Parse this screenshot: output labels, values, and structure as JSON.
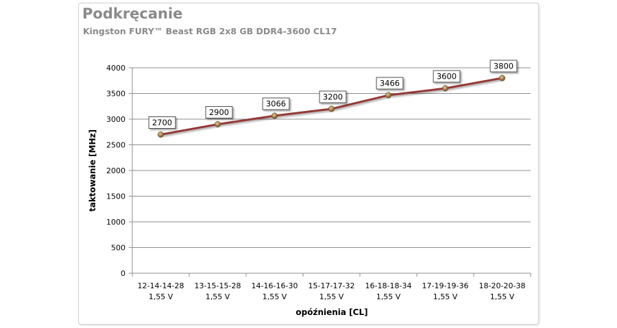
{
  "chart_data": {
    "type": "line",
    "title": "Podkręcanie",
    "subtitle": "Kingston FURY™ Beast RGB 2x8 GB DDR4-3600 CL17",
    "xlabel": "opóźnienia [CL]",
    "ylabel": "taktowanie [MHz]",
    "ylim": [
      0,
      4000
    ],
    "yticks": [
      0,
      500,
      1000,
      1500,
      2000,
      2500,
      3000,
      3500,
      4000
    ],
    "grid": true,
    "categories": [
      [
        "12-14-14-28",
        "1,55 V"
      ],
      [
        "13-15-15-28",
        "1,55 V"
      ],
      [
        "14-16-16-30",
        "1,55 V"
      ],
      [
        "15-17-17-32",
        "1,55 V"
      ],
      [
        "16-18-18-34",
        "1,55 V"
      ],
      [
        "17-19-19-36",
        "1,55 V"
      ],
      [
        "18-20-20-38",
        "1,55 V"
      ]
    ],
    "series": [
      {
        "values": [
          2700,
          2900,
          3066,
          3200,
          3466,
          3600,
          3800
        ],
        "color": "#953735"
      }
    ]
  }
}
